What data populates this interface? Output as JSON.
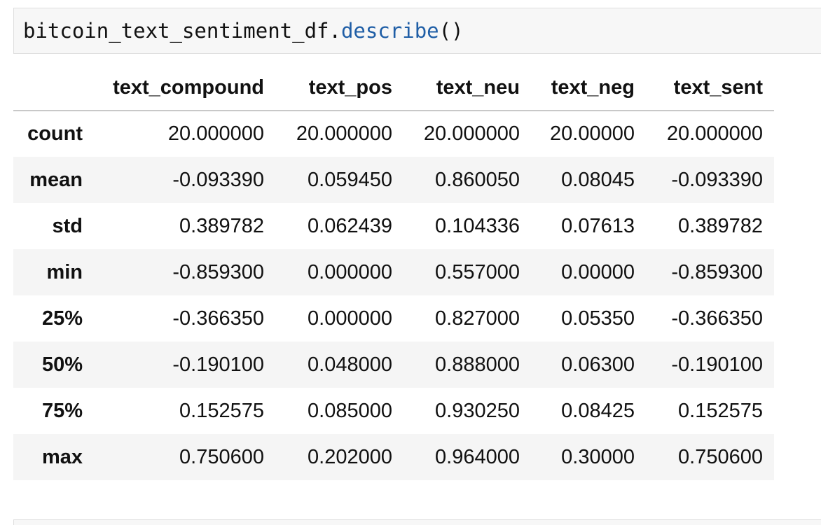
{
  "code_cell": {
    "object": "bitcoin_text_sentiment_df.",
    "method": "describe",
    "call": "()"
  },
  "table": {
    "columns": [
      "text_compound",
      "text_pos",
      "text_neu",
      "text_neg",
      "text_sent"
    ],
    "rows": [
      {
        "label": "count",
        "values": [
          "20.000000",
          "20.000000",
          "20.000000",
          "20.00000",
          "20.000000"
        ]
      },
      {
        "label": "mean",
        "values": [
          "-0.093390",
          "0.059450",
          "0.860050",
          "0.08045",
          "-0.093390"
        ]
      },
      {
        "label": "std",
        "values": [
          "0.389782",
          "0.062439",
          "0.104336",
          "0.07613",
          "0.389782"
        ]
      },
      {
        "label": "min",
        "values": [
          "-0.859300",
          "0.000000",
          "0.557000",
          "0.00000",
          "-0.859300"
        ]
      },
      {
        "label": "25%",
        "values": [
          "-0.366350",
          "0.000000",
          "0.827000",
          "0.05350",
          "-0.366350"
        ]
      },
      {
        "label": "50%",
        "values": [
          "-0.190100",
          "0.048000",
          "0.888000",
          "0.06300",
          "-0.190100"
        ]
      },
      {
        "label": "75%",
        "values": [
          "0.152575",
          "0.085000",
          "0.930250",
          "0.08425",
          "0.152575"
        ]
      },
      {
        "label": "max",
        "values": [
          "0.750600",
          "0.202000",
          "0.964000",
          "0.30000",
          "0.750600"
        ]
      }
    ]
  },
  "colors": {
    "code_background": "#f7f7f7",
    "method_color": "#1f5ea6",
    "stripe_row": "#f5f5f5"
  }
}
